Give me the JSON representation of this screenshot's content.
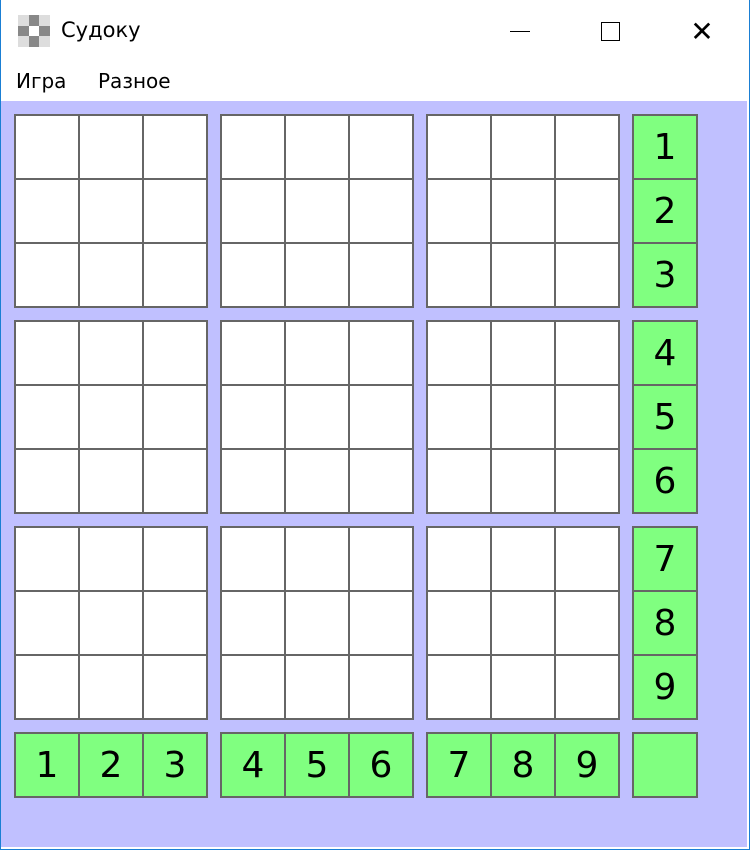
{
  "window": {
    "title": "Судоку",
    "minimize_icon": "minimize-icon",
    "maximize_icon": "maximize-icon",
    "close_icon": "close-icon"
  },
  "menu": [
    {
      "label": "Игра"
    },
    {
      "label": "Разное"
    }
  ],
  "colors": {
    "background": "#c0c0ff",
    "palette": "#80ff80",
    "cell": "#ffffff",
    "border": "#666666"
  },
  "board": [
    [
      "",
      "",
      "",
      "",
      "",
      "",
      "",
      "",
      ""
    ],
    [
      "",
      "",
      "",
      "",
      "",
      "",
      "",
      "",
      ""
    ],
    [
      "",
      "",
      "",
      "",
      "",
      "",
      "",
      "",
      ""
    ],
    [
      "",
      "",
      "",
      "",
      "",
      "",
      "",
      "",
      ""
    ],
    [
      "",
      "",
      "",
      "",
      "",
      "",
      "",
      "",
      ""
    ],
    [
      "",
      "",
      "",
      "",
      "",
      "",
      "",
      "",
      ""
    ],
    [
      "",
      "",
      "",
      "",
      "",
      "",
      "",
      "",
      ""
    ],
    [
      "",
      "",
      "",
      "",
      "",
      "",
      "",
      "",
      ""
    ],
    [
      "",
      "",
      "",
      "",
      "",
      "",
      "",
      "",
      ""
    ]
  ],
  "row_palette": [
    "1",
    "2",
    "3",
    "4",
    "5",
    "6",
    "7",
    "8",
    "9"
  ],
  "column_palette": [
    "1",
    "2",
    "3",
    "4",
    "5",
    "6",
    "7",
    "8",
    "9"
  ],
  "corner_button": ""
}
